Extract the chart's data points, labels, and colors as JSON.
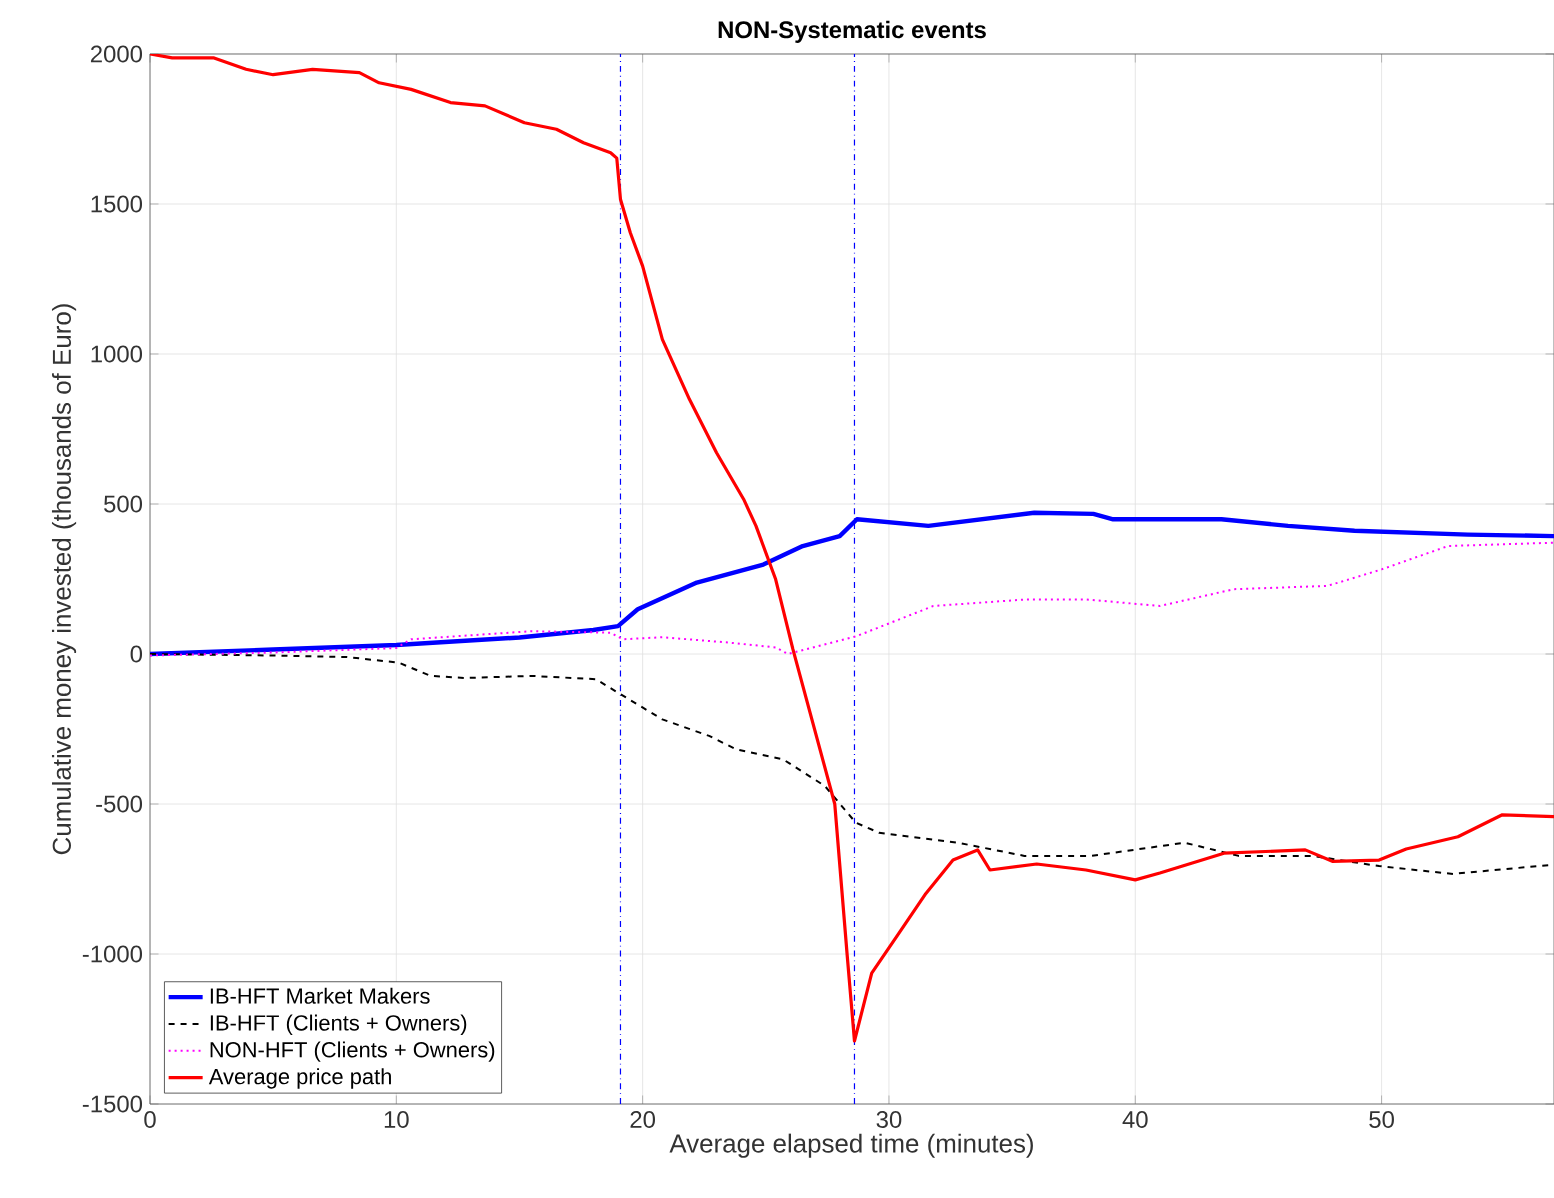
{
  "chart_data": {
    "type": "line",
    "title": "NON-Systematic events",
    "xlabel": "Average elapsed time (minutes)",
    "ylabel": "Cumulative money invested (thousands of Euro)",
    "xlim": [
      0,
      57
    ],
    "ylim": [
      -1500,
      2000
    ],
    "xticks": [
      0,
      10,
      20,
      30,
      40,
      50
    ],
    "yticks": [
      -1500,
      -1000,
      -500,
      0,
      500,
      1000,
      1500,
      2000
    ],
    "grid": true,
    "legend": "bottom left",
    "ref_lines": [
      {
        "axis": "x",
        "value": 19.1,
        "color": "#0000ff",
        "line_style": "dashdot"
      },
      {
        "axis": "x",
        "value": 28.6,
        "color": "#0000ff",
        "line_style": "dashdot"
      }
    ],
    "series": [
      {
        "name": "IB-HFT Market Makers",
        "color": "#0000ff",
        "line_style": "solid",
        "x": [
          0,
          5,
          10,
          15,
          18,
          19,
          19.8,
          22.2,
          24.9,
          26.5,
          28.0,
          28.7,
          31.6,
          35.9,
          38.3,
          39.1,
          43.5,
          46.2,
          48.9,
          53.5,
          57
        ],
        "values": [
          0,
          15,
          30,
          55,
          80,
          93,
          149,
          238,
          298,
          360,
          393,
          449,
          427,
          471,
          467,
          449,
          449,
          427,
          411,
          398,
          393
        ]
      },
      {
        "name": "IB-HFT (Clients + Owners)",
        "color": "#000000",
        "line_style": "dashed",
        "x": [
          0,
          5,
          8,
          10.1,
          11.4,
          12.8,
          15.5,
          18.1,
          19,
          20.8,
          22.7,
          23.8,
          25.7,
          27.4,
          28.65,
          29.6,
          32.8,
          35.5,
          38.2,
          40.1,
          42,
          44.2,
          47.2,
          49.9,
          52.9,
          57
        ],
        "values": [
          0,
          -5,
          -10,
          -29,
          -73,
          -80,
          -73,
          -84,
          -129,
          -218,
          -273,
          -318,
          -351,
          -440,
          -562,
          -596,
          -629,
          -673,
          -673,
          -651,
          -629,
          -673,
          -673,
          -707,
          -733,
          -702
        ]
      },
      {
        "name": "NON-HFT (Clients + Owners)",
        "color": "#ff00ff",
        "line_style": "dotted",
        "x": [
          0,
          5,
          10,
          10.6,
          15.5,
          18.7,
          19.2,
          20.8,
          23.5,
          25.4,
          25.9,
          28.7,
          31.8,
          35.6,
          38,
          41,
          44,
          47.8,
          50,
          52.7,
          57
        ],
        "values": [
          -5,
          5,
          20,
          49,
          76,
          71,
          49,
          56,
          38,
          22,
          0,
          60,
          160,
          182,
          182,
          160,
          216,
          227,
          282,
          360,
          371
        ]
      },
      {
        "name": "Average price path",
        "color": "#ff0000",
        "line_style": "solid",
        "x": [
          0,
          0.9,
          2.6,
          3.9,
          5,
          6.6,
          8.5,
          9.3,
          10.6,
          12.2,
          13.6,
          15.2,
          16.5,
          17.6,
          18.7,
          18.95,
          19.1,
          19.5,
          20,
          20.8,
          21.9,
          23,
          24.1,
          24.6,
          25.4,
          26.1,
          27.8,
          28.3,
          28.6,
          29.3,
          30.4,
          31.5,
          32.6,
          33.6,
          34.1,
          36,
          38,
          40,
          41,
          43.6,
          46.9,
          48,
          49.9,
          51,
          53.1,
          54.9,
          57
        ],
        "values": [
          2000,
          1987,
          1987,
          1949,
          1931,
          1949,
          1938,
          1904,
          1882,
          1838,
          1827,
          1771,
          1749,
          1704,
          1671,
          1653,
          1516,
          1404,
          1293,
          1049,
          849,
          671,
          516,
          427,
          249,
          16,
          -500,
          -1000,
          -1290,
          -1064,
          -931,
          -798,
          -687,
          -653,
          -720,
          -700,
          -720,
          -753,
          -730,
          -664,
          -653,
          -691,
          -687,
          -650,
          -609,
          -536,
          -542
        ]
      }
    ]
  }
}
